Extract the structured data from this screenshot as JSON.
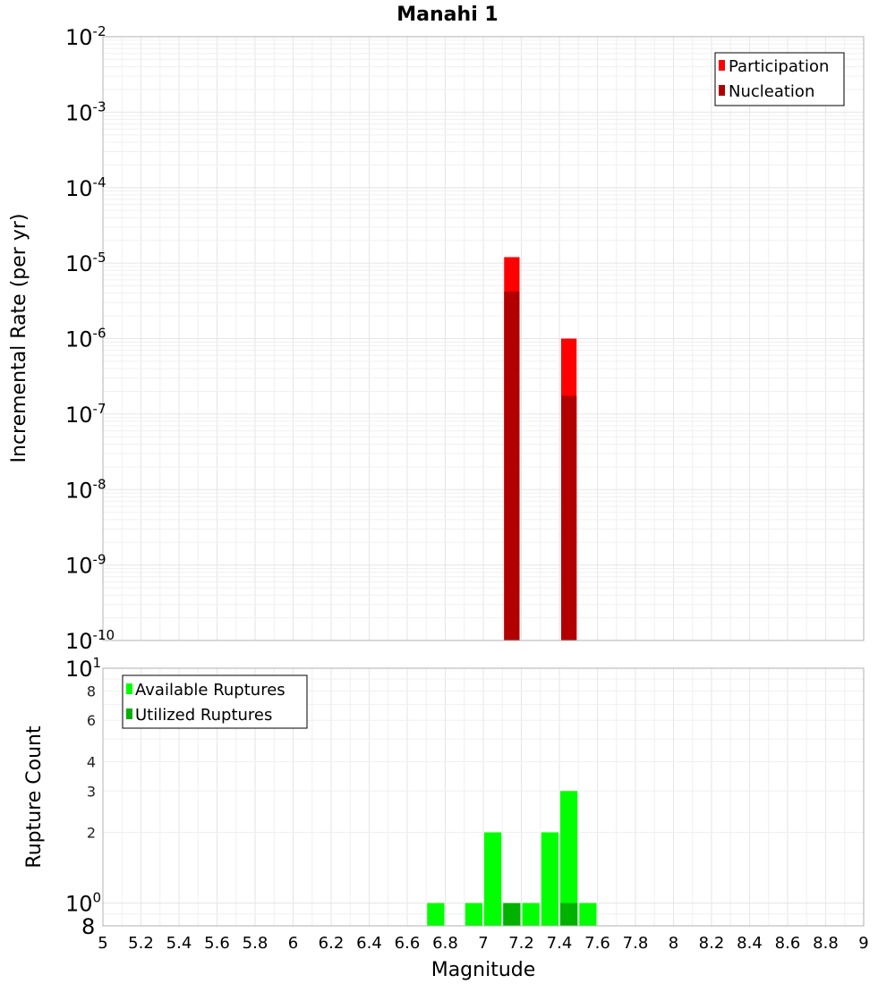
{
  "chart_data": [
    {
      "type": "bar",
      "title": "Manahi 1",
      "xlabel": "",
      "ylabel": "Incremental Rate (per yr)",
      "y_scale": "log",
      "ylim": [
        1e-10,
        0.01
      ],
      "xlim": [
        5,
        9
      ],
      "y_ticks": [
        {
          "base": "10",
          "exp": "-2"
        },
        {
          "base": "10",
          "exp": "-3"
        },
        {
          "base": "10",
          "exp": "-4"
        },
        {
          "base": "10",
          "exp": "-5"
        },
        {
          "base": "10",
          "exp": "-6"
        },
        {
          "base": "10",
          "exp": "-7"
        },
        {
          "base": "10",
          "exp": "-8"
        },
        {
          "base": "10",
          "exp": "-9"
        },
        {
          "base": "10",
          "exp": "-10"
        }
      ],
      "bin_width": 0.1,
      "grid": true,
      "legend_position": "top-right",
      "series": [
        {
          "name": "Participation",
          "color": "#ff0000",
          "x": [
            7.15,
            7.45
          ],
          "values": [
            1.2e-05,
            1e-06
          ]
        },
        {
          "name": "Nucleation",
          "color": "#b20000",
          "x": [
            7.15,
            7.45
          ],
          "values": [
            4.2e-06,
            1.75e-07
          ]
        }
      ]
    },
    {
      "type": "bar",
      "title": "",
      "xlabel": "Magnitude",
      "ylabel": "Rupture Count",
      "y_scale": "log",
      "ylim": [
        0.8,
        10
      ],
      "xlim": [
        5,
        9
      ],
      "x_ticks": [
        "5",
        "5.2",
        "5.4",
        "5.6",
        "5.8",
        "6",
        "6.2",
        "6.4",
        "6.6",
        "6.8",
        "7",
        "7.2",
        "7.4",
        "7.6",
        "7.8",
        "8",
        "8.2",
        "8.4",
        "8.6",
        "8.8",
        "9"
      ],
      "y_ticks_major": [
        {
          "base": "10",
          "exp": "1"
        },
        {
          "base": "10",
          "exp": "0"
        },
        {
          "base": "8",
          "exp": ""
        }
      ],
      "y_ticks_minor": [
        "8",
        "6",
        "4",
        "3",
        "2"
      ],
      "bin_width": 0.1,
      "grid": true,
      "legend_position": "top-left",
      "series": [
        {
          "name": "Available Ruptures",
          "color": "#00ff00",
          "x": [
            6.75,
            6.95,
            7.05,
            7.15,
            7.25,
            7.35,
            7.45,
            7.55
          ],
          "values": [
            1,
            1,
            2,
            1,
            1,
            2,
            3,
            1
          ]
        },
        {
          "name": "Utilized Ruptures",
          "color": "#00b200",
          "x": [
            7.15,
            7.45
          ],
          "values": [
            1,
            1
          ]
        }
      ]
    }
  ]
}
